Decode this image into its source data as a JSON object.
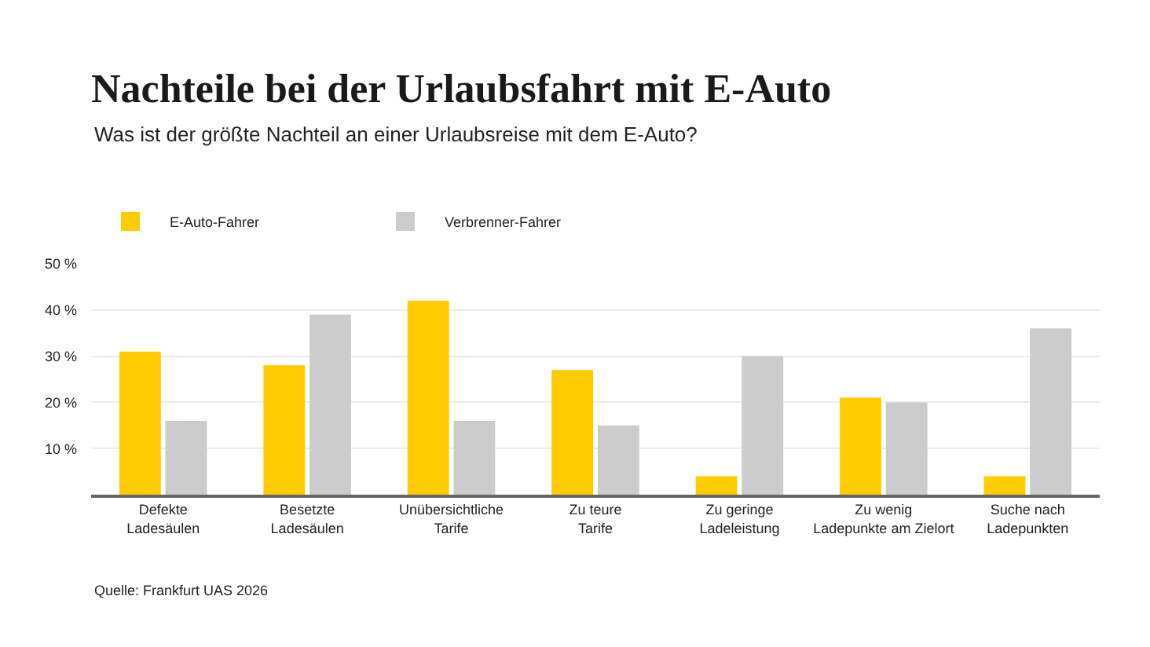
{
  "chart_data": {
    "type": "bar",
    "title": "Nachteile bei der Urlaubsfahrt mit E-Auto",
    "subtitle": "Was ist der größte Nachteil an einer Urlaubsreise mit dem E-Auto?",
    "categories": [
      "Defekte\nLadesäulen",
      "Besetzte\nLadesäulen",
      "Unübersichtliche\nTarife",
      "Zu teure\nTarife",
      "Zu geringe\nLadeleistung",
      "Zu wenig\nLadepunkte am Zielort",
      "Suche nach\nLadepunkten"
    ],
    "series": [
      {
        "name": "E-Auto-Fahrer",
        "color": "#ffcc00",
        "values": [
          31,
          28,
          42,
          27,
          4,
          21,
          4
        ]
      },
      {
        "name": "Verbrenner-Fahrer",
        "color": "#cccccc",
        "values": [
          16,
          39,
          16,
          15,
          30,
          20,
          36
        ]
      }
    ],
    "ylim": [
      0,
      50
    ],
    "yticks": [
      {
        "value": 10,
        "label": "10 %"
      },
      {
        "value": 20,
        "label": "20 %"
      },
      {
        "value": 30,
        "label": "30 %"
      },
      {
        "value": 40,
        "label": "40 %"
      },
      {
        "value": 50,
        "label": "50 %"
      }
    ],
    "grid": "y",
    "legend": "top left",
    "annotations": [
      "Quelle: Frankfurt UAS 2026"
    ]
  }
}
